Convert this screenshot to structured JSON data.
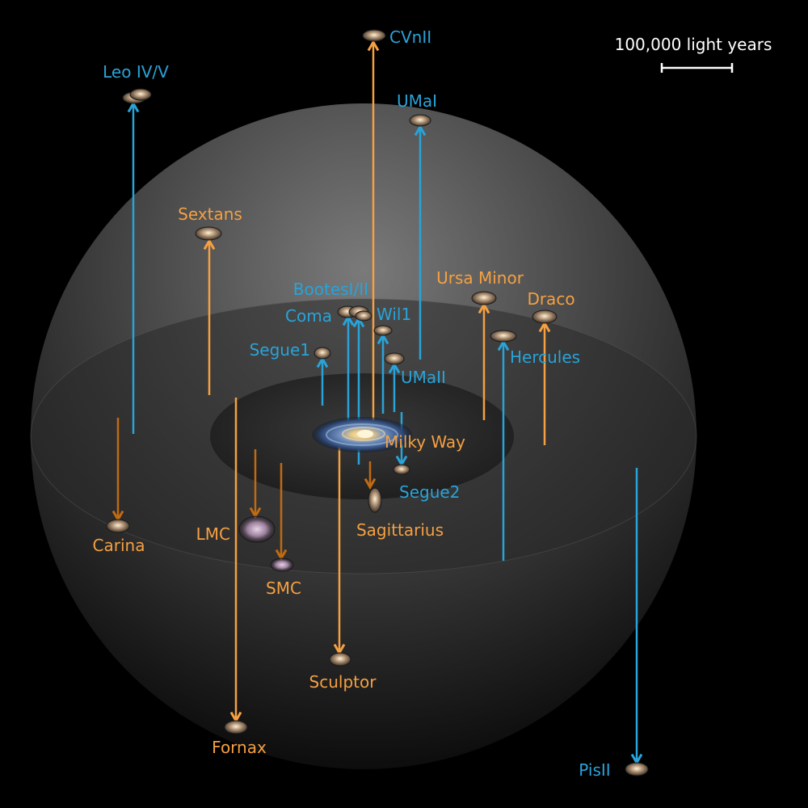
{
  "scale_bar": {
    "label": "100,000 light years"
  },
  "colors": {
    "blue": "#29a3d8",
    "orange": "#f5a042",
    "brown": "#c06a12",
    "scale": "#ffffff"
  },
  "center": {
    "name": "Milky Way",
    "icon": "spiral-galaxy"
  },
  "galaxies": [
    {
      "id": "cvnii",
      "label": "CVnII",
      "color": "blue"
    },
    {
      "id": "leo-iv-v",
      "label": "Leo IV/V",
      "color": "blue"
    },
    {
      "id": "umai",
      "label": "UMaI",
      "color": "blue"
    },
    {
      "id": "sextans",
      "label": "Sextans",
      "color": "orange"
    },
    {
      "id": "bootes-i-ii",
      "label": "BootesI/II",
      "color": "blue"
    },
    {
      "id": "coma",
      "label": "Coma",
      "color": "blue"
    },
    {
      "id": "wil1",
      "label": "Wil1",
      "color": "blue"
    },
    {
      "id": "ursa-minor",
      "label": "Ursa Minor",
      "color": "orange"
    },
    {
      "id": "draco",
      "label": "Draco",
      "color": "orange"
    },
    {
      "id": "segue1",
      "label": "Segue1",
      "color": "blue"
    },
    {
      "id": "hercules",
      "label": "Hercules",
      "color": "blue"
    },
    {
      "id": "umaii",
      "label": "UMaII",
      "color": "blue"
    },
    {
      "id": "segue2",
      "label": "Segue2",
      "color": "blue"
    },
    {
      "id": "sagittarius",
      "label": "Sagittarius",
      "color": "orange"
    },
    {
      "id": "carina",
      "label": "Carina",
      "color": "orange"
    },
    {
      "id": "lmc",
      "label": "LMC",
      "color": "orange"
    },
    {
      "id": "smc",
      "label": "SMC",
      "color": "orange"
    },
    {
      "id": "sculptor",
      "label": "Sculptor",
      "color": "orange"
    },
    {
      "id": "fornax",
      "label": "Fornax",
      "color": "orange"
    },
    {
      "id": "pisii",
      "label": "PisII",
      "color": "blue"
    }
  ]
}
